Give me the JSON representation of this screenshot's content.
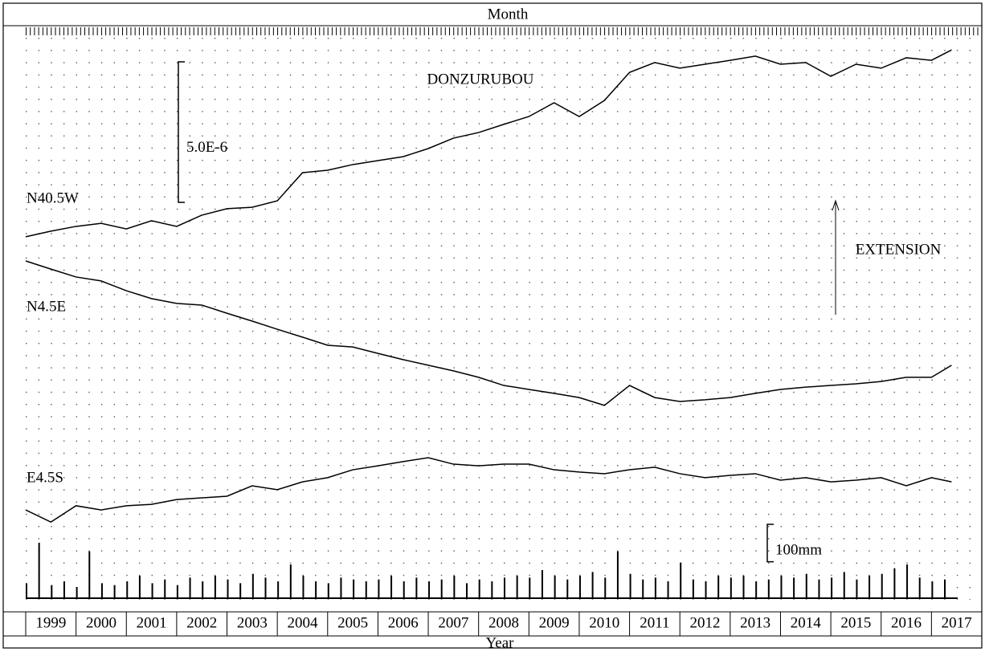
{
  "chart_data": {
    "type": "line",
    "title": "DONZURUBOU",
    "top_label": "Month",
    "xlabel": "Year",
    "xlim": [
      1999,
      2018
    ],
    "xticks": [
      1999,
      2000,
      2001,
      2002,
      2003,
      2004,
      2005,
      2006,
      2007,
      2008,
      2009,
      2010,
      2011,
      2012,
      2013,
      2014,
      2015,
      2016,
      2017
    ],
    "ylim": [
      0,
      2e-05
    ],
    "x": [
      1999,
      1999.5,
      2000,
      2000.5,
      2001,
      2001.5,
      2002,
      2002.5,
      2003,
      2003.5,
      2004,
      2004.5,
      2005,
      2005.5,
      2006,
      2006.5,
      2007,
      2007.5,
      2008,
      2008.5,
      2009,
      2009.5,
      2010,
      2010.5,
      2011,
      2011.5,
      2012,
      2012.5,
      2013,
      2013.5,
      2014,
      2014.5,
      2015,
      2015.5,
      2016,
      2016.5,
      2017,
      2017.4
    ],
    "series": [
      {
        "name": "N40.5W",
        "color": "#000000",
        "values": [
          1.286e-05,
          1.306e-05,
          1.323e-05,
          1.334e-05,
          1.314e-05,
          1.343e-05,
          1.323e-05,
          1.363e-05,
          1.386e-05,
          1.391e-05,
          1.414e-05,
          1.514e-05,
          1.523e-05,
          1.543e-05,
          1.557e-05,
          1.571e-05,
          1.6e-05,
          1.637e-05,
          1.657e-05,
          1.686e-05,
          1.714e-05,
          1.763e-05,
          1.714e-05,
          1.771e-05,
          1.871e-05,
          1.906e-05,
          1.886e-05,
          1.9e-05,
          1.914e-05,
          1.929e-05,
          1.9e-05,
          1.906e-05,
          1.857e-05,
          1.9e-05,
          1.886e-05,
          1.923e-05,
          1.914e-05,
          1.951e-05
        ]
      },
      {
        "name": "N4.5E",
        "color": "#000000",
        "values": [
          1.2e-05,
          1.171e-05,
          1.143e-05,
          1.129e-05,
          1.094e-05,
          1.066e-05,
          1.049e-05,
          1.043e-05,
          1.014e-05,
          9.86e-06,
          9.57e-06,
          9.29e-06,
          9e-06,
          8.94e-06,
          8.71e-06,
          8.49e-06,
          8.29e-06,
          8.09e-06,
          7.86e-06,
          7.57e-06,
          7.43e-06,
          7.29e-06,
          7.14e-06,
          6.86e-06,
          7.57e-06,
          7.14e-06,
          7e-06,
          7.06e-06,
          7.14e-06,
          7.29e-06,
          7.43e-06,
          7.51e-06,
          7.57e-06,
          7.63e-06,
          7.71e-06,
          7.86e-06,
          7.86e-06,
          8.29e-06
        ]
      },
      {
        "name": "E4.5S",
        "color": "#000000",
        "values": [
          3.14e-06,
          2.71e-06,
          3.29e-06,
          3.14e-06,
          3.29e-06,
          3.34e-06,
          3.51e-06,
          3.57e-06,
          3.63e-06,
          4e-06,
          3.86e-06,
          4.14e-06,
          4.29e-06,
          4.57e-06,
          4.71e-06,
          4.86e-06,
          5e-06,
          4.77e-06,
          4.71e-06,
          4.77e-06,
          4.77e-06,
          4.57e-06,
          4.49e-06,
          4.43e-06,
          4.57e-06,
          4.66e-06,
          4.43e-06,
          4.29e-06,
          4.37e-06,
          4.43e-06,
          4.2e-06,
          4.29e-06,
          4.14e-06,
          4.2e-06,
          4.29e-06,
          4e-06,
          4.29e-06,
          4.14e-06
        ]
      }
    ],
    "scale_bar": {
      "value": 5e-06,
      "label": "5.0E-6"
    },
    "annotation": "EXTENSION",
    "rain": {
      "color": "#000000",
      "ylim": [
        0,
        1500
      ],
      "x": [
        1999,
        1999.25,
        1999.5,
        1999.75,
        2000,
        2000.25,
        2000.5,
        2000.75,
        2001,
        2001.25,
        2001.5,
        2001.75,
        2002,
        2002.25,
        2002.5,
        2002.75,
        2003,
        2003.25,
        2003.5,
        2003.75,
        2004,
        2004.25,
        2004.5,
        2004.75,
        2005,
        2005.25,
        2005.5,
        2005.75,
        2006,
        2006.25,
        2006.5,
        2006.75,
        2007,
        2007.25,
        2007.5,
        2007.75,
        2008,
        2008.25,
        2008.5,
        2008.75,
        2009,
        2009.25,
        2009.5,
        2009.75,
        2010,
        2010.25,
        2010.5,
        2010.75,
        2011,
        2011.25,
        2011.5,
        2011.75,
        2012,
        2012.25,
        2012.5,
        2012.75,
        2013,
        2013.25,
        2013.5,
        2013.75,
        2014,
        2014.25,
        2014.5,
        2014.75,
        2015,
        2015.25,
        2015.5,
        2015.75,
        2016,
        2016.25,
        2016.5,
        2016.75,
        2017,
        2017.25
      ],
      "values": [
        40,
        148,
        35,
        45,
        30,
        125,
        40,
        35,
        45,
        60,
        40,
        50,
        35,
        55,
        45,
        60,
        50,
        40,
        65,
        55,
        45,
        90,
        60,
        45,
        40,
        55,
        50,
        45,
        50,
        60,
        45,
        55,
        45,
        50,
        60,
        40,
        50,
        45,
        55,
        60,
        55,
        75,
        60,
        50,
        60,
        70,
        55,
        125,
        65,
        50,
        55,
        45,
        95,
        50,
        45,
        60,
        55,
        60,
        45,
        50,
        60,
        55,
        65,
        50,
        55,
        70,
        50,
        60,
        65,
        80,
        90,
        55,
        45,
        50
      ],
      "scale_bar": {
        "value": 100,
        "label": "100mm"
      }
    }
  }
}
